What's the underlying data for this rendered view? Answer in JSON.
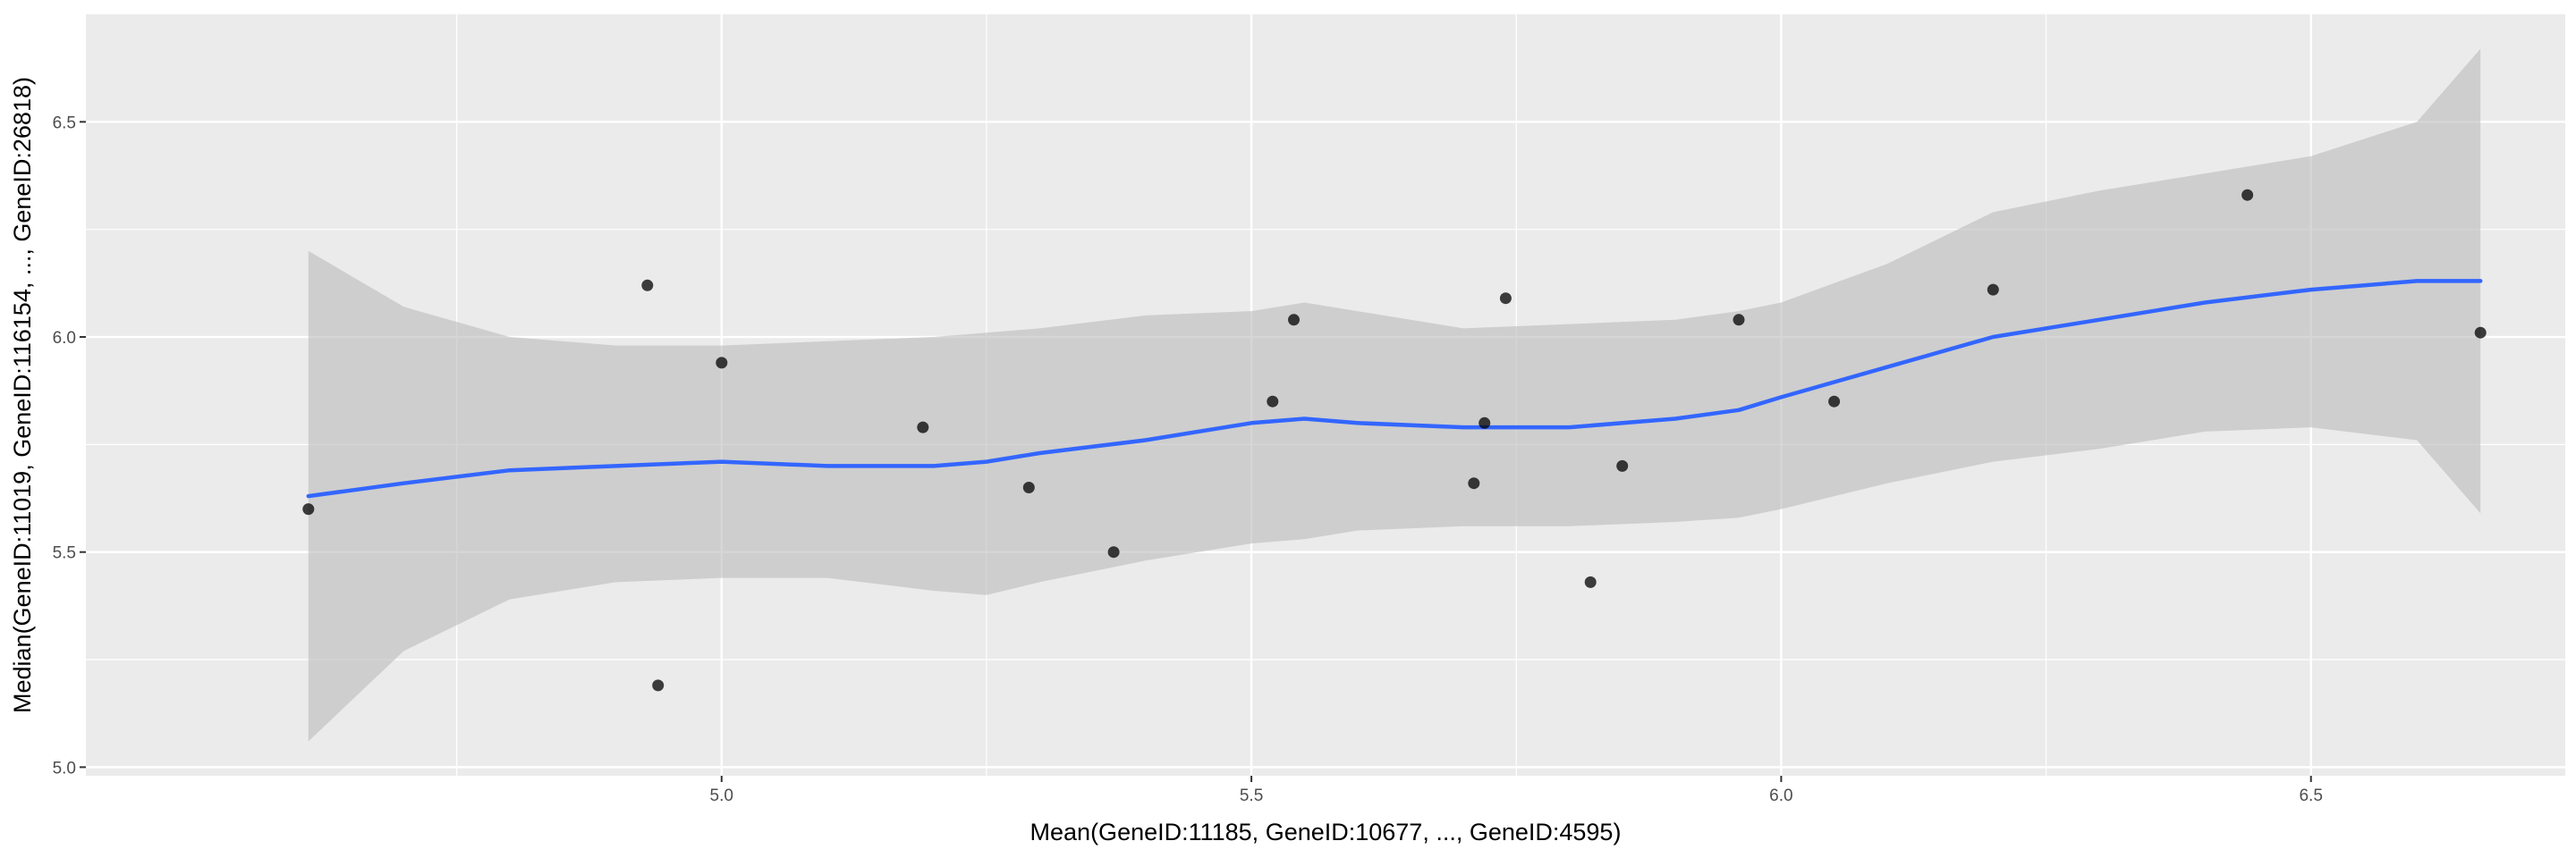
{
  "chart_data": {
    "type": "scatter",
    "title": "",
    "xlabel": "Mean(GeneID:11185, GeneID:10677, ..., GeneID:4595)",
    "ylabel": "Median(GeneID:11019, GeneID:116154, ..., GeneID:26818)",
    "xlim": [
      4.4,
      6.74
    ],
    "ylim": [
      4.98,
      6.75
    ],
    "x_ticks": [
      5.0,
      5.5,
      6.0,
      6.5
    ],
    "y_ticks": [
      5.0,
      5.5,
      6.0,
      6.5
    ],
    "x_tick_labels": [
      "5.0",
      "5.5",
      "6.0",
      "6.5"
    ],
    "y_tick_labels": [
      "5.0",
      "5.5",
      "6.0",
      "6.5"
    ],
    "grid": true,
    "colors": {
      "panel": "#ebebeb",
      "grid": "#ffffff",
      "points": "#000000",
      "smooth_line": "#3366ff",
      "confidence_band": "#bdbdbd"
    },
    "points": [
      {
        "x": 4.61,
        "y": 5.6
      },
      {
        "x": 4.93,
        "y": 6.12
      },
      {
        "x": 4.94,
        "y": 5.19
      },
      {
        "x": 5.0,
        "y": 5.94
      },
      {
        "x": 5.19,
        "y": 5.79
      },
      {
        "x": 5.29,
        "y": 5.65
      },
      {
        "x": 5.37,
        "y": 5.5
      },
      {
        "x": 5.52,
        "y": 5.85
      },
      {
        "x": 5.54,
        "y": 6.04
      },
      {
        "x": 5.71,
        "y": 5.66
      },
      {
        "x": 5.72,
        "y": 5.8
      },
      {
        "x": 5.74,
        "y": 6.09
      },
      {
        "x": 5.82,
        "y": 5.43
      },
      {
        "x": 5.85,
        "y": 5.7
      },
      {
        "x": 5.96,
        "y": 6.04
      },
      {
        "x": 6.05,
        "y": 5.85
      },
      {
        "x": 6.2,
        "y": 6.11
      },
      {
        "x": 6.44,
        "y": 6.33
      },
      {
        "x": 6.66,
        "y": 6.01
      }
    ],
    "smooth": {
      "method": "loess",
      "x": [
        4.61,
        4.7,
        4.8,
        4.9,
        5.0,
        5.1,
        5.2,
        5.25,
        5.3,
        5.4,
        5.5,
        5.55,
        5.6,
        5.7,
        5.8,
        5.9,
        5.96,
        6.0,
        6.1,
        6.2,
        6.3,
        6.4,
        6.5,
        6.6,
        6.66
      ],
      "y": [
        5.63,
        5.66,
        5.69,
        5.7,
        5.71,
        5.7,
        5.7,
        5.71,
        5.73,
        5.76,
        5.8,
        5.81,
        5.8,
        5.79,
        5.79,
        5.81,
        5.83,
        5.86,
        5.93,
        6.0,
        6.04,
        6.08,
        6.11,
        6.13,
        6.13
      ],
      "upper": [
        6.2,
        6.07,
        6.0,
        5.98,
        5.98,
        5.99,
        6.0,
        6.01,
        6.02,
        6.05,
        6.06,
        6.08,
        6.06,
        6.02,
        6.03,
        6.04,
        6.06,
        6.08,
        6.17,
        6.29,
        6.34,
        6.38,
        6.42,
        6.5,
        6.67
      ],
      "lower": [
        5.06,
        5.27,
        5.39,
        5.43,
        5.44,
        5.44,
        5.41,
        5.4,
        5.43,
        5.48,
        5.52,
        5.53,
        5.55,
        5.56,
        5.56,
        5.57,
        5.58,
        5.6,
        5.66,
        5.71,
        5.74,
        5.78,
        5.79,
        5.76,
        5.59
      ]
    }
  }
}
